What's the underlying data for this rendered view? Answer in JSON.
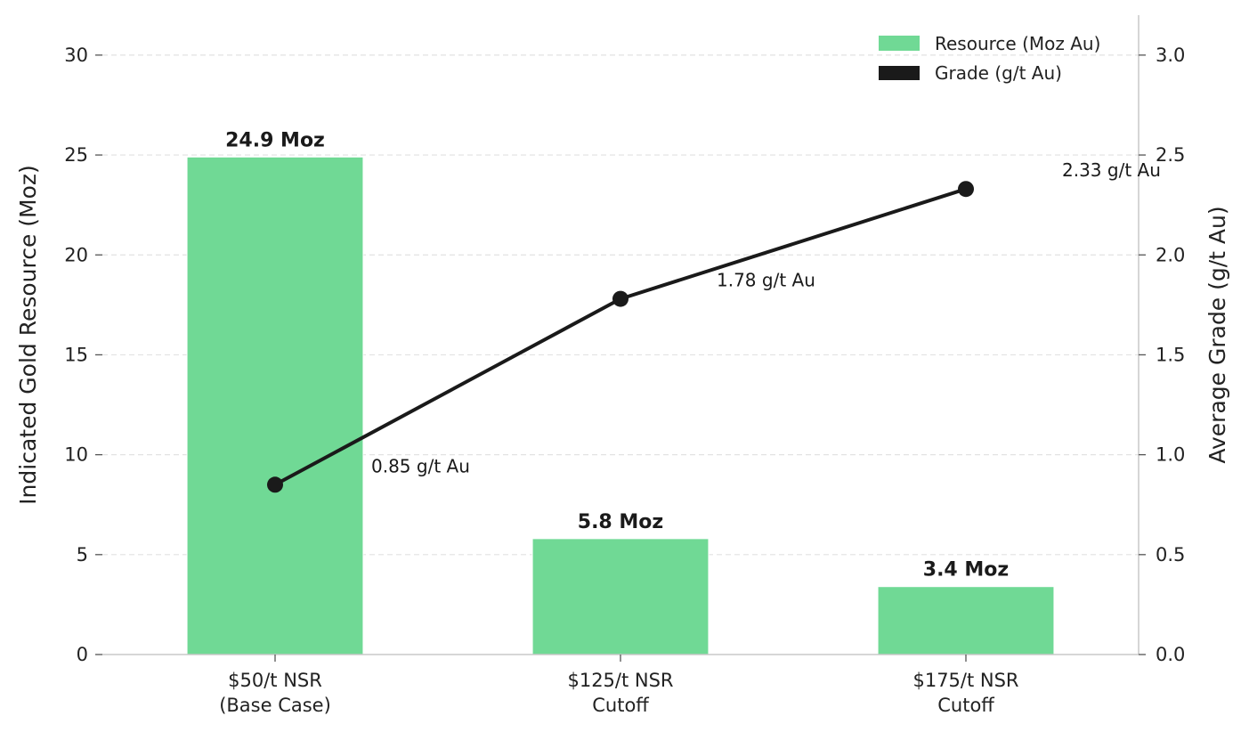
{
  "chart_data": {
    "type": "bar",
    "categories": [
      [
        "$50/t NSR",
        "(Base Case)"
      ],
      [
        "$125/t NSR",
        "Cutoff"
      ],
      [
        "$175/t NSR",
        "Cutoff"
      ]
    ],
    "series": [
      {
        "name": "Resource (Moz Au)",
        "kind": "bar",
        "axis": "left",
        "values": [
          24.9,
          5.8,
          3.4
        ],
        "labels": [
          "24.9 Moz",
          "5.8 Moz",
          "3.4 Moz"
        ],
        "color": "#70d995"
      },
      {
        "name": "Grade (g/t Au)",
        "kind": "line",
        "axis": "right",
        "values": [
          0.85,
          1.78,
          2.33
        ],
        "labels": [
          "0.85 g/t Au",
          "1.78 g/t Au",
          "2.33 g/t Au"
        ],
        "color": "#1a1a1a"
      }
    ],
    "ylabel": "Indicated Gold Resource (Moz)",
    "y2label": "Average Grade (g/t Au)",
    "ylim": [
      0,
      32
    ],
    "y2lim": [
      0,
      3.2
    ],
    "yticks": [
      0,
      5,
      10,
      15,
      20,
      25,
      30
    ],
    "y2ticks": [
      "0.0",
      "0.5",
      "1.0",
      "1.5",
      "2.0",
      "2.5",
      "3.0"
    ],
    "grid": true,
    "legend_position": "top-right"
  }
}
